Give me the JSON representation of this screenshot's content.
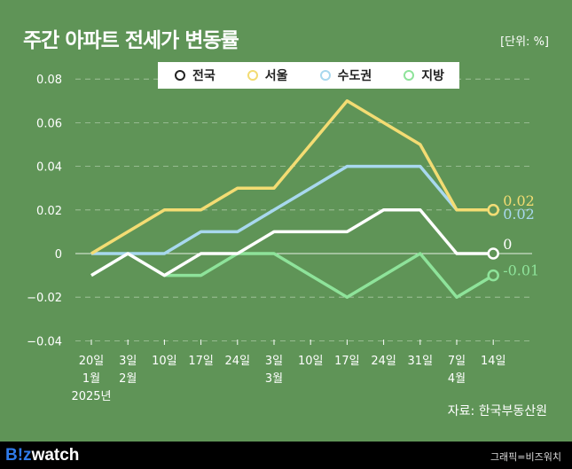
{
  "title": "주간 아파트 전세가 변동률",
  "unit": "[단위: %]",
  "source": "자료: 한국부동산원",
  "footer": {
    "logo_b": "B!z",
    "logo_w": "watch",
    "credit": "그래픽=비즈워치"
  },
  "chart_data": {
    "type": "line",
    "title": "주간 아파트 전세가 변동률",
    "x": [
      "20일",
      "3일",
      "10일",
      "17일",
      "24일",
      "3일",
      "10일",
      "17일",
      "24일",
      "31일",
      "7일",
      "14일"
    ],
    "x_sub": [
      "1월",
      "2월",
      "",
      "",
      "",
      "3월",
      "",
      "",
      "",
      "",
      "4월",
      ""
    ],
    "x_year": "2025년",
    "ylim": [
      -0.04,
      0.08
    ],
    "yticks": [
      "0.08",
      "0.06",
      "0.04",
      "0.02",
      "0",
      "−0.02",
      "−0.04"
    ],
    "grid": true,
    "legend": "top-center",
    "series": [
      {
        "name": "전국",
        "color": "#ffffff",
        "values": [
          -0.01,
          0,
          -0.01,
          0,
          0,
          0.01,
          0.01,
          0.01,
          0.02,
          0.02,
          0,
          0
        ],
        "end_label": "0"
      },
      {
        "name": "서울",
        "color": "#f3dc73",
        "values": [
          0,
          0.01,
          0.02,
          0.02,
          0.03,
          0.03,
          0.05,
          0.07,
          0.06,
          0.05,
          0.02,
          0.02
        ],
        "end_label": "0.02"
      },
      {
        "name": "수도권",
        "color": "#a8d8ee",
        "values": [
          0,
          0,
          0,
          0.01,
          0.01,
          0.02,
          0.03,
          0.04,
          0.04,
          0.04,
          0.02,
          0.02
        ],
        "end_label": "0.02"
      },
      {
        "name": "지방",
        "color": "#8ee39a",
        "values": [
          -0.01,
          0,
          -0.01,
          -0.01,
          0,
          0,
          -0.01,
          -0.02,
          -0.01,
          0,
          -0.02,
          -0.01
        ],
        "end_label": "-0.01"
      }
    ]
  }
}
